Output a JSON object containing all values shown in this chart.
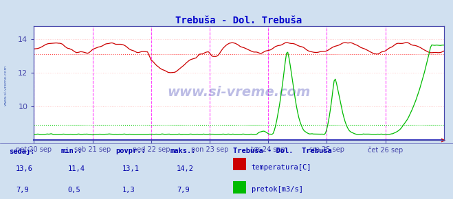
{
  "title": "Trebuša - Dol. Trebuša",
  "title_color": "#0000cc",
  "bg_color": "#d0e0f0",
  "plot_bg_color": "#ffffff",
  "grid_h_color": "#ffcccc",
  "vline_color": "#ff44ff",
  "hline_temp_color": "#ff4444",
  "hline_flow_color": "#00cc00",
  "temp_color": "#cc0000",
  "flow_color": "#00bb00",
  "axis_color": "#4444aa",
  "watermark": "www.si-vreme.com",
  "watermark_color": "#2222aa",
  "sidebar_text": "www.si-vreme.com",
  "sidebar_color": "#2244aa",
  "xticklabels": [
    "pet 20 sep",
    "sob 21 sep",
    "ned 22 sep",
    "pon 23 sep",
    "tor 24 sep",
    "sre 25 sep",
    "čet 26 sep"
  ],
  "xtick_positions": [
    0,
    48,
    96,
    144,
    192,
    240,
    288
  ],
  "total_points": 337,
  "ylim_temp": [
    8.0,
    14.8
  ],
  "ylim_flow": [
    0.0,
    9.5
  ],
  "yticks_temp": [
    10,
    12,
    14
  ],
  "temp_avg": 13.1,
  "flow_avg": 1.3,
  "legend_title": "Trebuša - Dol.  Trebuša",
  "legend_temp": "temperatura[C]",
  "legend_flow": "pretok[m3/s]",
  "table_headers": [
    "sedaj:",
    "min.:",
    "povpr.:",
    "maks.:"
  ],
  "table_vals_temp": [
    "13,6",
    "11,4",
    "13,1",
    "14,2"
  ],
  "table_vals_flow": [
    "7,9",
    "0,5",
    "1,3",
    "7,9"
  ],
  "bottom_text_color": "#0000aa",
  "arrow_color": "#cc0000"
}
